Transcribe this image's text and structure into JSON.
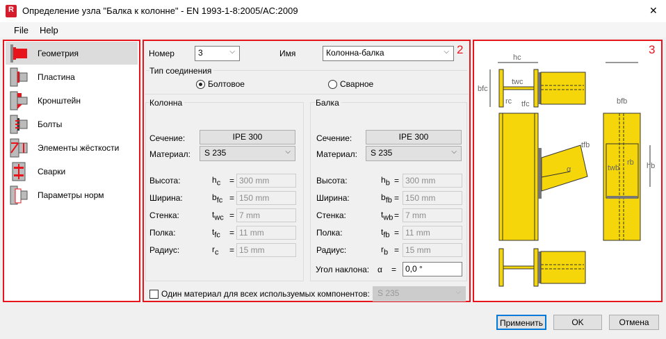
{
  "window": {
    "title": "Определение узла \"Балка к колонне\" - EN 1993-1-8:2005/AC:2009",
    "close": "✕",
    "app_icon": "R"
  },
  "menu": [
    "File",
    "Help"
  ],
  "panel_numbers": [
    "1",
    "2",
    "3"
  ],
  "sidebar": {
    "items": [
      {
        "label": "Геометрия",
        "selected": true
      },
      {
        "label": "Пластина"
      },
      {
        "label": "Кронштейн"
      },
      {
        "label": "Болты"
      },
      {
        "label": "Элементы жёсткости"
      },
      {
        "label": "Сварки"
      },
      {
        "label": "Параметры норм"
      }
    ]
  },
  "form": {
    "number_label": "Номер",
    "number_value": "3",
    "name_label": "Имя",
    "name_value": "Колонна-балка",
    "conn_type_label": "Тип соединения",
    "conn_options": [
      "Болтовое",
      "Сварное"
    ],
    "conn_selected": "Болтовое",
    "column": {
      "title": "Колонна",
      "section_label": "Сечение:",
      "section": "IPE 300",
      "material_label": "Материал:",
      "material": "S 235",
      "rows": [
        {
          "label": "Высота:",
          "sym": "h",
          "sub": "c",
          "value": "300 mm"
        },
        {
          "label": "Ширина:",
          "sym": "b",
          "sub": "fc",
          "value": "150 mm"
        },
        {
          "label": "Стенка:",
          "sym": "t",
          "sub": "wc",
          "value": "7 mm"
        },
        {
          "label": "Полка:",
          "sym": "t",
          "sub": "fc",
          "value": "11 mm"
        },
        {
          "label": "Радиус:",
          "sym": "r",
          "sub": "c",
          "value": "15 mm"
        }
      ]
    },
    "beam": {
      "title": "Балка",
      "section_label": "Сечение:",
      "section": "IPE 300",
      "material_label": "Материал:",
      "material": "S 235",
      "rows": [
        {
          "label": "Высота:",
          "sym": "h",
          "sub": "b",
          "value": "300 mm"
        },
        {
          "label": "Ширина:",
          "sym": "b",
          "sub": "fb",
          "value": "150 mm"
        },
        {
          "label": "Стенка:",
          "sym": "t",
          "sub": "wb",
          "value": "7 mm"
        },
        {
          "label": "Полка:",
          "sym": "t",
          "sub": "fb",
          "value": "11 mm"
        },
        {
          "label": "Радиус:",
          "sym": "r",
          "sub": "b",
          "value": "15 mm"
        }
      ],
      "angle_label": "Угол наклона:",
      "angle_sym": "α",
      "angle_value": "0,0 °"
    },
    "eq": "=",
    "same_material_label": "Один материал для всех используемых компонентов:",
    "same_material_checked": false,
    "same_material_value": "S 235"
  },
  "diagram": {
    "labels": {
      "hc": "hc",
      "bfc": "bfc",
      "twc": "twc",
      "rc": "rc",
      "tfc": "tfc",
      "bfb": "bfb",
      "tfb": "tfb",
      "hb": "hb",
      "twb": "twb",
      "rb": "rb",
      "alpha": "α"
    },
    "steel_color": "#f5d60a"
  },
  "buttons": {
    "apply": "Применить",
    "ok": "OK",
    "cancel": "Отмена"
  }
}
